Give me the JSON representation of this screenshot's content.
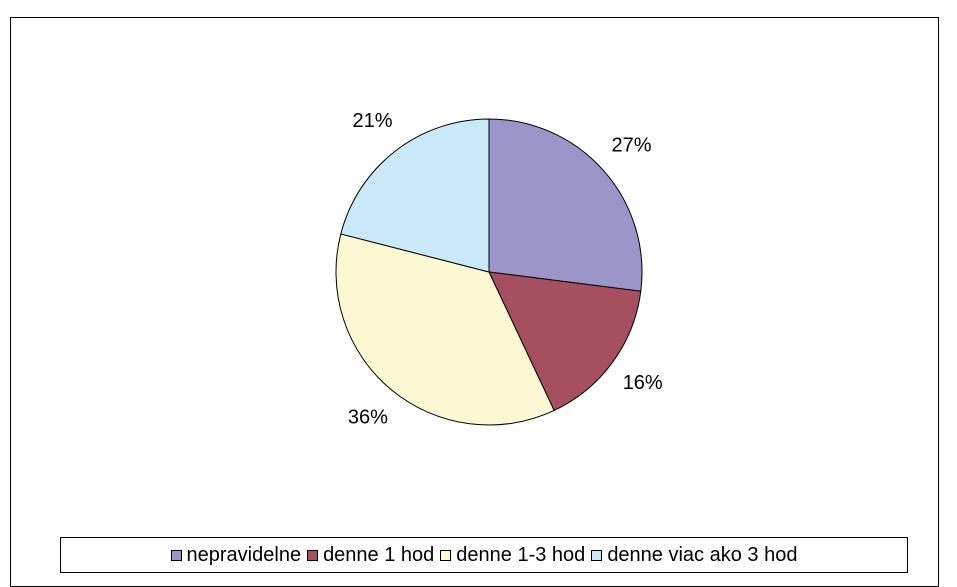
{
  "chart_data": {
    "type": "pie",
    "categories": [
      "nepravidelne",
      "denne 1 hod",
      "denne 1-3 hod",
      "denne viac ako 3 hod"
    ],
    "values": [
      27,
      16,
      36,
      21
    ],
    "value_labels": [
      "27%",
      "16%",
      "36%",
      "21%"
    ],
    "colors": [
      "#9b95c9",
      "#a5505f",
      "#fcf8d2",
      "#c9e9f8"
    ],
    "legend": "bottom"
  }
}
